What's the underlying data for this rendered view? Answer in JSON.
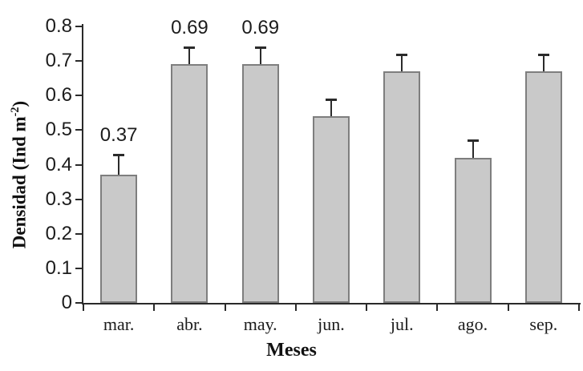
{
  "chart_data": {
    "type": "bar",
    "title": "",
    "xlabel": "Meses",
    "ylabel": "Densidad (Ind m⁻²)",
    "ylabel_parts": {
      "prefix": "Densidad (Ind m",
      "sup": "-2",
      "suffix": ")"
    },
    "categories": [
      "mar.",
      "abr.",
      "may.",
      "jun.",
      "jul.",
      "ago.",
      "sep."
    ],
    "values": [
      0.37,
      0.69,
      0.69,
      0.54,
      0.67,
      0.42,
      0.67
    ],
    "error_bar_tops": [
      0.43,
      0.74,
      0.74,
      0.59,
      0.72,
      0.47,
      0.72
    ],
    "bar_labels": [
      "0.37",
      "0.69",
      "0.69",
      "",
      "",
      "",
      ""
    ],
    "ylim": [
      0,
      0.8
    ],
    "ytick_step": 0.1,
    "yticks": [
      "0",
      "0.1",
      "0.2",
      "0.3",
      "0.4",
      "0.5",
      "0.6",
      "0.7",
      "0.8"
    ],
    "grid": false,
    "legend": "none",
    "colors": {
      "bar_fill": "#c9c9c9",
      "bar_border": "#7e7e7e",
      "error_bar": "#2b2b2b",
      "axis": "#2a2a2a",
      "text": "#1c1c1c",
      "background": "#ffffff"
    }
  }
}
